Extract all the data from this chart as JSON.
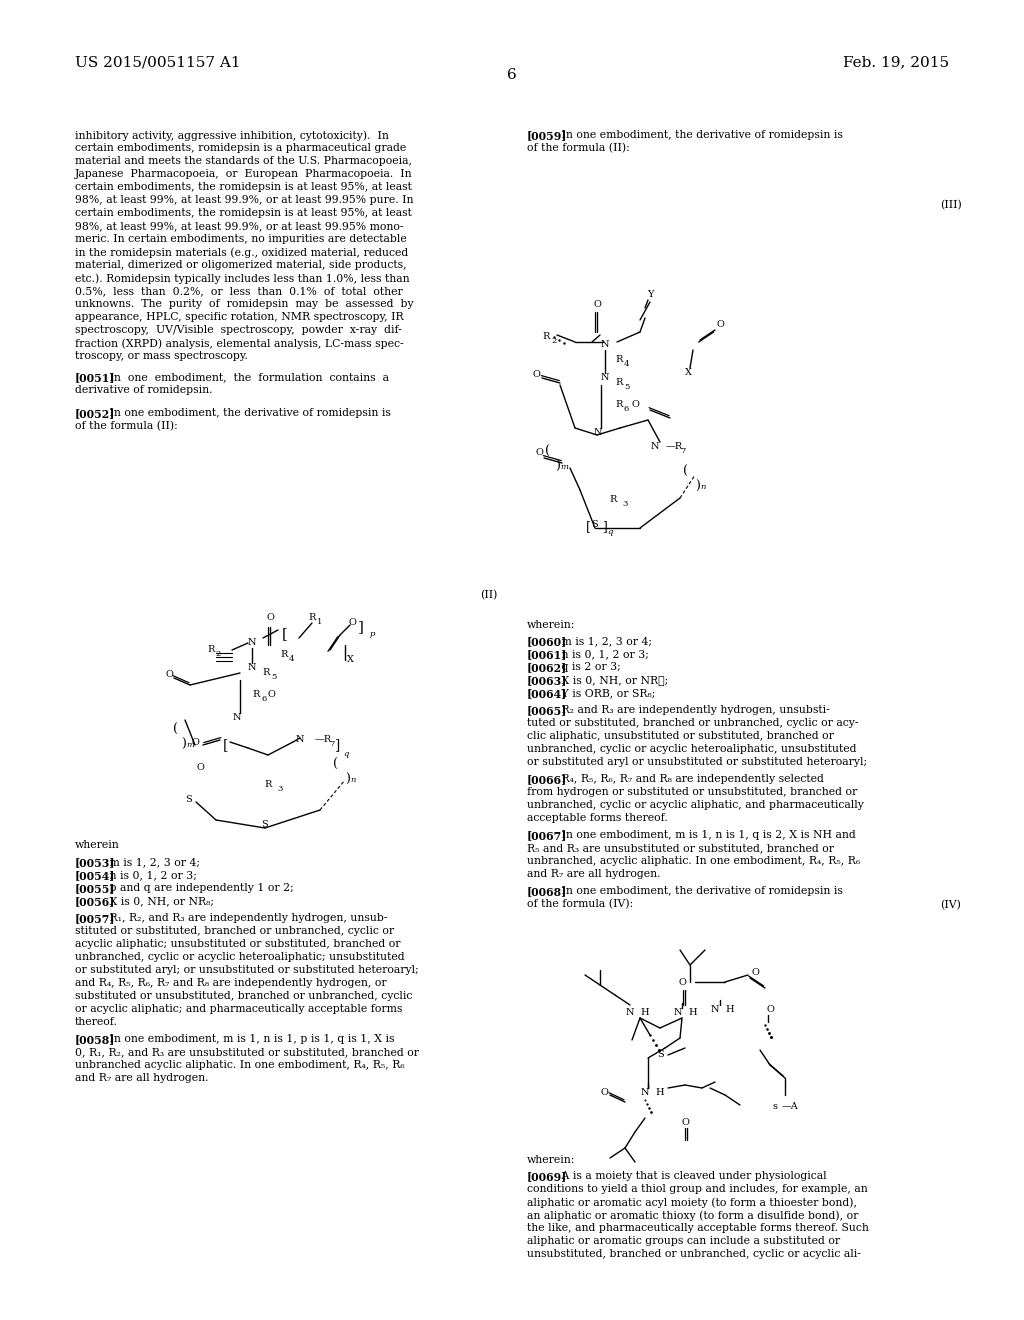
{
  "header_left": "US 2015/0051157 A1",
  "header_right": "Feb. 19, 2015",
  "page_number": "6",
  "bg_color": "#ffffff"
}
